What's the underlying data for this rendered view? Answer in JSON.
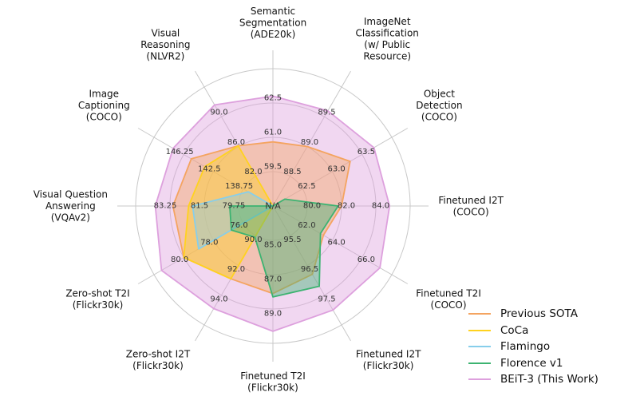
{
  "chart_data": {
    "type": "radar",
    "axes": [
      {
        "label": [
          "Semantic",
          "Segmentation",
          "(ADE20k)"
        ],
        "ticks": [
          "N/A",
          "59.5",
          "61.0",
          "62.5"
        ]
      },
      {
        "label": [
          "ImageNet",
          "Classification",
          "(w/ Public",
          "Resource)"
        ],
        "ticks": [
          "N/A",
          "88.5",
          "89.0",
          "89.5"
        ]
      },
      {
        "label": [
          "Object",
          "Detection",
          "(COCO)"
        ],
        "ticks": [
          "N/A",
          "62.5",
          "63.0",
          "63.5"
        ]
      },
      {
        "label": [
          "Finetuned I2T",
          "(COCO)"
        ],
        "ticks": [
          "N/A",
          "80.0",
          "82.0",
          "84.0"
        ]
      },
      {
        "label": [
          "Finetuned T2I",
          "(COCO)"
        ],
        "ticks": [
          "N/A",
          "62.0",
          "64.0",
          "66.0"
        ]
      },
      {
        "label": [
          "Finetuned I2T",
          "(Flickr30k)"
        ],
        "ticks": [
          "N/A",
          "95.5",
          "96.5",
          "97.5"
        ]
      },
      {
        "label": [
          "Finetuned T2I",
          "(Flickr30k)"
        ],
        "ticks": [
          "N/A",
          "85.0",
          "87.0",
          "89.0"
        ]
      },
      {
        "label": [
          "Zero-shot I2T",
          "(Flickr30k)"
        ],
        "ticks": [
          "N/A",
          "90.0",
          "92.0",
          "94.0"
        ]
      },
      {
        "label": [
          "Zero-shot T2I",
          "(Flickr30k)"
        ],
        "ticks": [
          "N/A",
          "76.0",
          "78.0",
          "80.0"
        ]
      },
      {
        "label": [
          "Visual Question",
          "Answering",
          "(VQAv2)"
        ],
        "ticks": [
          "N/A",
          "79.75",
          "81.5",
          "83.25"
        ]
      },
      {
        "label": [
          "Image",
          "Captioning",
          "(COCO)"
        ],
        "ticks": [
          "N/A",
          "138.75",
          "142.5",
          "146.25"
        ]
      },
      {
        "label": [
          "Visual",
          "Reasoning",
          "(NLVR2)"
        ],
        "ticks": [
          "N/A",
          "82.0",
          "86.0",
          "90.0"
        ]
      }
    ],
    "series": [
      {
        "name": "Previous SOTA",
        "color": "#f4a460",
        "values": [
          60.8,
          89.0,
          63.3,
          82.0,
          63.4,
          96.8,
          88.1,
          92.9,
          80.0,
          83.1,
          145.3,
          86.1
        ]
      },
      {
        "name": "CoCa",
        "color": "#ffd21f",
        "values": [
          null,
          null,
          null,
          null,
          null,
          null,
          null,
          92.9,
          80.0,
          82.3,
          143.6,
          86.1
        ]
      },
      {
        "name": "Flamingo",
        "color": "#87ceeb",
        "values": [
          null,
          null,
          null,
          null,
          null,
          null,
          null,
          null,
          79.0,
          82.1,
          138.1,
          null
        ]
      },
      {
        "name": "Florence v1",
        "color": "#3cb371",
        "values": [
          null,
          88.0,
          62.2,
          81.8,
          63.2,
          97.2,
          88.3,
          90.1,
          76.8,
          80.2,
          null,
          null
        ]
      },
      {
        "name": "BEiT-3 (This Work)",
        "color": "#dda0dd",
        "values": [
          62.8,
          89.6,
          63.7,
          84.8,
          67.2,
          98.0,
          90.3,
          94.9,
          81.5,
          84.0,
          147.6,
          91.6
        ]
      }
    ],
    "legend_position": "bottom-right"
  }
}
